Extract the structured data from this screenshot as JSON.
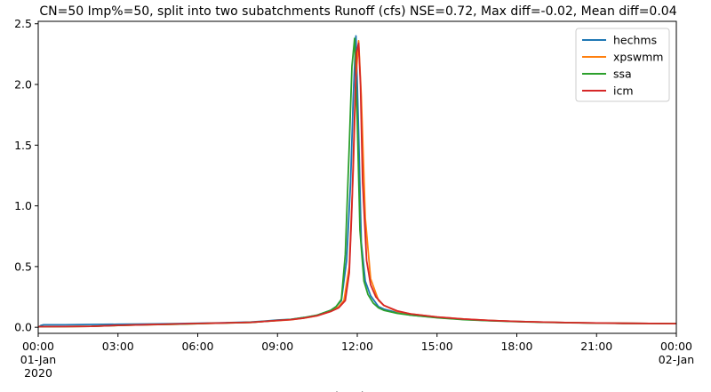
{
  "chart_data": {
    "type": "line",
    "title": "CN=50 Imp%=50, split into two subatchments Runoff (cfs) NSE=0.72, Max diff=-0.02, Mean diff=0.04",
    "xlabel": "datetime",
    "ylabel": "",
    "x_unit": "hours from 2020-01-01 00:00",
    "xlim": [
      0,
      24
    ],
    "ylim": [
      -0.05,
      2.52
    ],
    "yticks": [
      0.0,
      0.5,
      1.0,
      1.5,
      2.0,
      2.5
    ],
    "ytick_labels": [
      "0.0",
      "0.5",
      "1.0",
      "1.5",
      "2.0",
      "2.5"
    ],
    "xticks": [
      0,
      3,
      6,
      9,
      12,
      15,
      18,
      21,
      24
    ],
    "xtick_labels": [
      [
        "00:00",
        "01-Jan",
        "2020"
      ],
      [
        "03:00"
      ],
      [
        "06:00"
      ],
      [
        "09:00"
      ],
      [
        "12:00"
      ],
      [
        "15:00"
      ],
      [
        "18:00"
      ],
      [
        "21:00"
      ],
      [
        "00:00",
        "02-Jan"
      ]
    ],
    "grid": false,
    "legend_position": "top-right",
    "series": [
      {
        "name": "hechms",
        "color": "#1f77b4",
        "x": [
          0,
          0.1,
          0.2,
          1,
          2,
          3,
          4,
          5,
          6,
          7,
          8,
          8.5,
          9,
          9.5,
          10,
          10.5,
          11,
          11.2,
          11.4,
          11.6,
          11.75,
          11.85,
          11.95,
          12.05,
          12.15,
          12.3,
          12.5,
          12.8,
          13,
          13.5,
          14,
          15,
          16,
          17,
          18,
          19,
          20,
          21,
          22,
          23,
          24
        ],
        "y": [
          0.0,
          0.015,
          0.02,
          0.02,
          0.023,
          0.025,
          0.027,
          0.03,
          0.033,
          0.037,
          0.043,
          0.05,
          0.06,
          0.065,
          0.08,
          0.1,
          0.14,
          0.17,
          0.22,
          0.55,
          1.2,
          1.9,
          2.4,
          1.6,
          0.7,
          0.38,
          0.26,
          0.17,
          0.15,
          0.12,
          0.1,
          0.08,
          0.065,
          0.055,
          0.048,
          0.042,
          0.038,
          0.035,
          0.033,
          0.031,
          0.03
        ]
      },
      {
        "name": "xpswmm",
        "color": "#ff7f0e",
        "x": [
          0,
          1,
          2,
          3,
          4,
          5,
          6,
          7,
          8,
          8.5,
          9,
          9.5,
          10,
          10.5,
          11,
          11.3,
          11.5,
          11.7,
          11.85,
          11.95,
          12.05,
          12.15,
          12.3,
          12.5,
          12.8,
          13,
          13.5,
          14,
          15,
          16,
          17,
          18,
          19,
          20,
          21,
          22,
          23,
          24
        ],
        "y": [
          0.005,
          0.006,
          0.008,
          0.015,
          0.02,
          0.025,
          0.03,
          0.035,
          0.04,
          0.048,
          0.055,
          0.062,
          0.075,
          0.095,
          0.13,
          0.17,
          0.22,
          0.5,
          1.3,
          2.05,
          2.36,
          1.9,
          0.9,
          0.4,
          0.22,
          0.18,
          0.13,
          0.11,
          0.085,
          0.068,
          0.056,
          0.048,
          0.042,
          0.038,
          0.035,
          0.033,
          0.031,
          0.03
        ]
      },
      {
        "name": "ssa",
        "color": "#2ca02c",
        "x": [
          0,
          1,
          2,
          3,
          4,
          5,
          6,
          7,
          8,
          8.5,
          9,
          9.5,
          10,
          10.5,
          11,
          11.2,
          11.4,
          11.55,
          11.7,
          11.8,
          11.9,
          12.0,
          12.1,
          12.25,
          12.4,
          12.6,
          12.8,
          13,
          13.5,
          14,
          15,
          16,
          17,
          18,
          19,
          20,
          21,
          22,
          23,
          24
        ],
        "y": [
          0.005,
          0.006,
          0.008,
          0.015,
          0.02,
          0.025,
          0.03,
          0.035,
          0.04,
          0.048,
          0.056,
          0.064,
          0.08,
          0.1,
          0.14,
          0.17,
          0.23,
          0.6,
          1.5,
          2.15,
          2.38,
          1.7,
          0.8,
          0.38,
          0.27,
          0.2,
          0.16,
          0.14,
          0.115,
          0.1,
          0.078,
          0.063,
          0.053,
          0.046,
          0.041,
          0.037,
          0.034,
          0.032,
          0.031,
          0.03
        ]
      },
      {
        "name": "icm",
        "color": "#d62728",
        "x": [
          0,
          1,
          2,
          3,
          4,
          5,
          6,
          7,
          8,
          8.5,
          9,
          9.5,
          10,
          10.5,
          11,
          11.3,
          11.55,
          11.7,
          11.8,
          11.9,
          11.97,
          12.05,
          12.12,
          12.2,
          12.35,
          12.5,
          12.7,
          13,
          13.5,
          14,
          15,
          16,
          17,
          18,
          19,
          20,
          21,
          22,
          23,
          24
        ],
        "y": [
          0.005,
          0.006,
          0.008,
          0.016,
          0.021,
          0.026,
          0.031,
          0.036,
          0.041,
          0.048,
          0.056,
          0.063,
          0.076,
          0.096,
          0.13,
          0.16,
          0.22,
          0.45,
          1.0,
          1.75,
          2.26,
          2.34,
          2.0,
          1.2,
          0.55,
          0.35,
          0.25,
          0.18,
          0.135,
          0.11,
          0.085,
          0.068,
          0.056,
          0.048,
          0.042,
          0.038,
          0.035,
          0.033,
          0.031,
          0.03
        ]
      }
    ]
  }
}
